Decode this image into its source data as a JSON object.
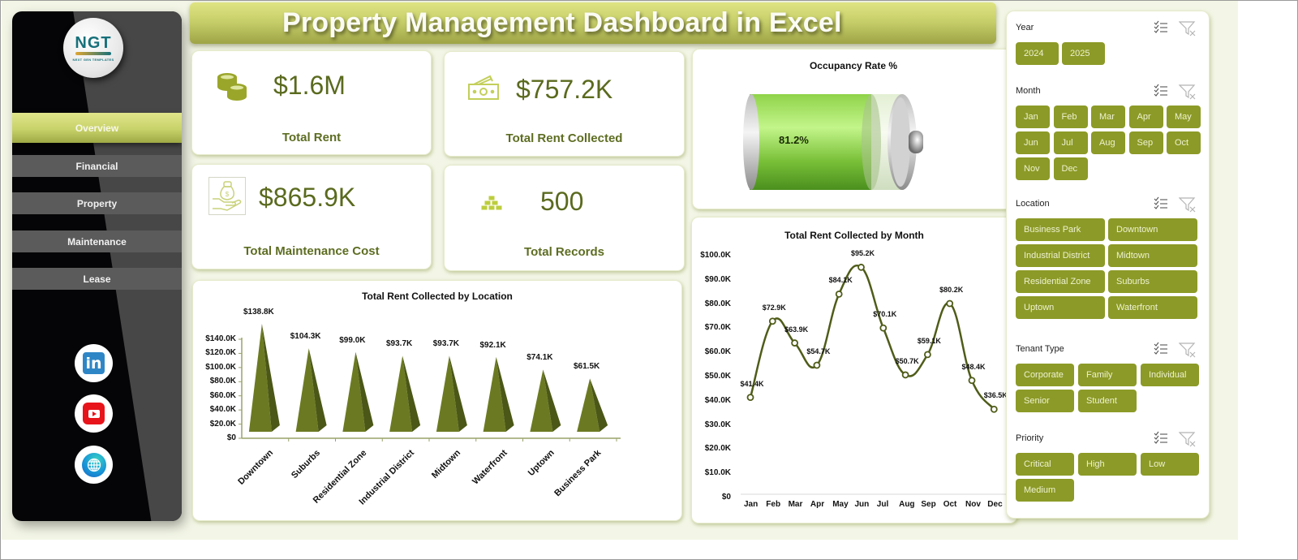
{
  "title": "Property Management Dashboard in Excel",
  "logo": {
    "text": "NGT",
    "tagline": "NEXT GEN TEMPLATES"
  },
  "sidebar": {
    "items": [
      {
        "label": "Overview",
        "active": true
      },
      {
        "label": "Financial",
        "active": false
      },
      {
        "label": "Property",
        "active": false
      },
      {
        "label": "Maintenance",
        "active": false
      },
      {
        "label": "Lease",
        "active": false
      }
    ],
    "social": [
      {
        "name": "linkedin-icon",
        "glyph": "in"
      },
      {
        "name": "youtube-icon"
      },
      {
        "name": "globe-icon"
      }
    ]
  },
  "kpis": [
    {
      "value": "$1.6M",
      "label": "Total Rent",
      "icon": "coins-icon"
    },
    {
      "value": "$757.2K",
      "label": "Total Rent Collected",
      "icon": "cash-icon"
    },
    {
      "value": "$865.9K",
      "label": "Total Maintenance Cost",
      "icon": "money-bag-hand-icon"
    },
    {
      "value": "500",
      "label": "Total Records",
      "icon": "gold-bars-icon"
    }
  ],
  "occupancy": {
    "title": "Occupancy Rate %",
    "value_label": "81.2%",
    "value": 81.2
  },
  "colors": {
    "accent": "#8c9a27",
    "chart_fill": "#6b7a22",
    "chart_line": "#4f5c19",
    "kpi_text": "#5a6a1e",
    "title_bar": "#c7cf6b"
  },
  "slicers": [
    {
      "name": "Year",
      "items": [
        "2024",
        "2025"
      ]
    },
    {
      "name": "Month",
      "items": [
        "Jan",
        "Feb",
        "Mar",
        "Apr",
        "May",
        "Jun",
        "Jul",
        "Aug",
        "Sep",
        "Oct",
        "Nov",
        "Dec"
      ]
    },
    {
      "name": "Location",
      "items": [
        "Business Park",
        "Downtown",
        "Industrial District",
        "Midtown",
        "Residential Zone",
        "Suburbs",
        "Uptown",
        "Waterfront"
      ]
    },
    {
      "name": "Tenant Type",
      "items": [
        "Corporate",
        "Family",
        "Individual",
        "Senior",
        "Student"
      ]
    },
    {
      "name": "Priority",
      "items": [
        "Critical",
        "High",
        "Low",
        "Medium"
      ]
    }
  ],
  "chart_data": [
    {
      "type": "bar",
      "style": "3d-pyramid",
      "title": "Total Rent Collected by Location",
      "categories": [
        "Downtown",
        "Suburbs",
        "Residential Zone",
        "Industrial District",
        "Midtown",
        "Waterfront",
        "Uptown",
        "Business Park"
      ],
      "values": [
        138.8,
        104.3,
        99.0,
        93.7,
        93.7,
        92.1,
        74.1,
        61.5
      ],
      "value_labels": [
        "$138.8K",
        "$104.3K",
        "$99.0K",
        "$93.7K",
        "$93.7K",
        "$92.1K",
        "$74.1K",
        "$61.5K"
      ],
      "xlabel": "",
      "ylabel": "",
      "yticks": [
        "$0",
        "$20.0K",
        "$40.0K",
        "$60.0K",
        "$80.0K",
        "$100.0K",
        "$120.0K",
        "$140.0K"
      ],
      "ylim": [
        0,
        140
      ],
      "units": "thousands USD",
      "grid": false,
      "legend": "none"
    },
    {
      "type": "line",
      "style": "smoothed-with-markers",
      "title": "Total Rent Collected by Month",
      "categories": [
        "Jan",
        "Feb",
        "Mar",
        "Apr",
        "May",
        "Jun",
        "Jul",
        "Aug",
        "Sep",
        "Oct",
        "Nov",
        "Dec"
      ],
      "values": [
        41.4,
        72.9,
        63.9,
        54.7,
        84.1,
        95.2,
        70.1,
        50.7,
        59.1,
        80.2,
        48.4,
        36.5
      ],
      "value_labels": [
        "$41.4K",
        "$72.9K",
        "$63.9K",
        "$54.7K",
        "$84.1K",
        "$95.2K",
        "$70.1K",
        "$50.7K",
        "$59.1K",
        "$80.2K",
        "$48.4K",
        "$36.5K"
      ],
      "xlabel": "",
      "ylabel": "",
      "yticks": [
        "$0",
        "$10.0K",
        "$20.0K",
        "$30.0K",
        "$40.0K",
        "$50.0K",
        "$60.0K",
        "$70.0K",
        "$80.0K",
        "$90.0K",
        "$100.0K"
      ],
      "ylim": [
        0,
        100
      ],
      "units": "thousands USD",
      "grid": false,
      "legend": "none"
    },
    {
      "type": "bar",
      "style": "battery-gauge",
      "title": "Occupancy Rate %",
      "categories": [
        "Occupancy"
      ],
      "values": [
        81.2
      ],
      "value_labels": [
        "81.2%"
      ],
      "ylim": [
        0,
        100
      ]
    }
  ]
}
